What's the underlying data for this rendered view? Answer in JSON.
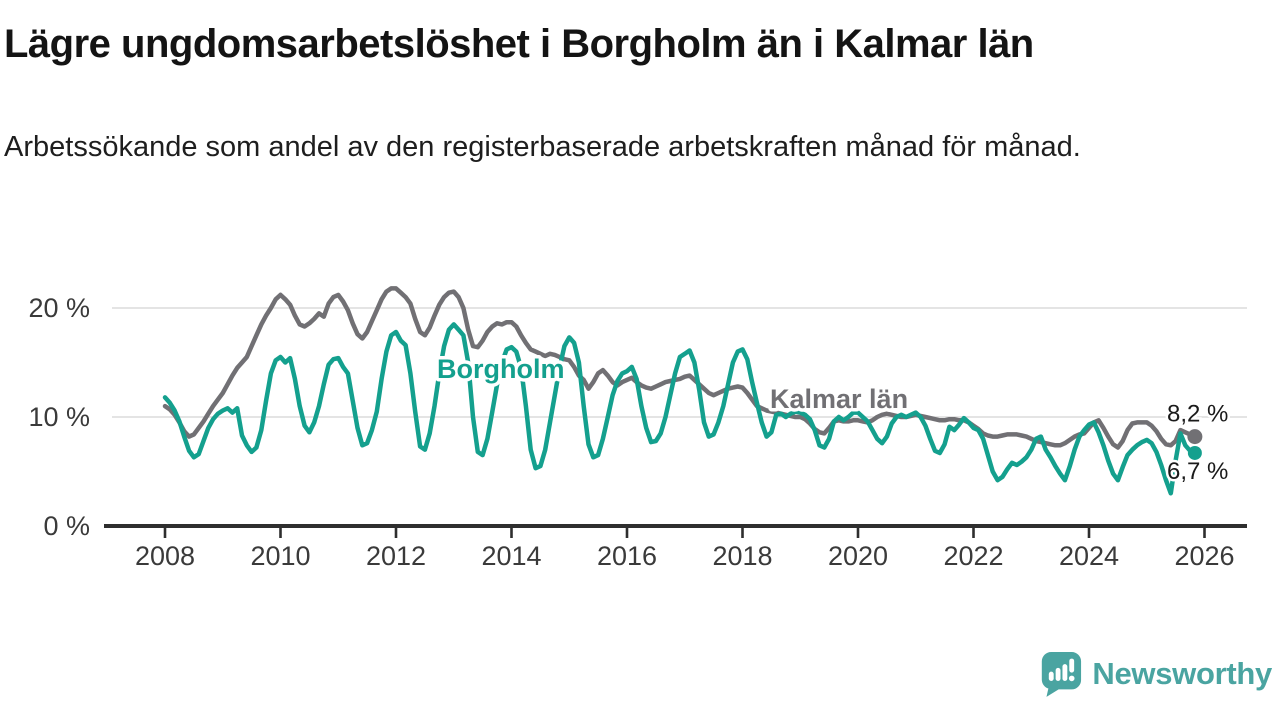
{
  "title": "Lägre ungdomsarbetslöshet i Borgholm än i Kalmar län",
  "subtitle": "Arbetssökande som andel av den registerbaserade arbetskraften månad för månad.",
  "footer": {
    "brand": "Newsworthy"
  },
  "colors": {
    "borgholm": "#14A08E",
    "kalmar": "#717074",
    "grid": "#dbdbdb",
    "axis": "#2e2e2e",
    "tick_text": "#3a3a3a",
    "value_text": "#1a1a1a",
    "logo": "#4AA4A1"
  },
  "chart_data": {
    "type": "line",
    "title": "Lägre ungdomsarbetslöshet i Borgholm än i Kalmar län",
    "xlabel": "",
    "ylabel": "Arbetssökande som andel av den registerbaserade arbetskraften",
    "x_start_year": 2008,
    "points_per_year": 12,
    "x_ticks": [
      2008,
      2010,
      2012,
      2014,
      2016,
      2018,
      2020,
      2022,
      2024,
      2026
    ],
    "y_ticks": [
      {
        "value": 0,
        "label": "0 %"
      },
      {
        "value": 10,
        "label": "10 %"
      },
      {
        "value": 20,
        "label": "20 %"
      }
    ],
    "ylim": [
      0,
      23
    ],
    "xlim": [
      2007.9,
      2026.8
    ],
    "grid": true,
    "legend_position": "inline-labels",
    "series": [
      {
        "name": "Kalmar län",
        "color": "#717074",
        "end_label": "8,2 %",
        "end_value": 8.2,
        "values": [
          11.0,
          10.7,
          10.2,
          9.5,
          8.7,
          8.2,
          8.4,
          9.0,
          9.6,
          10.3,
          11.0,
          11.6,
          12.2,
          13.0,
          13.8,
          14.5,
          15.0,
          15.5,
          16.5,
          17.5,
          18.5,
          19.3,
          20.0,
          20.8,
          21.2,
          20.8,
          20.3,
          19.3,
          18.5,
          18.3,
          18.6,
          19.0,
          19.5,
          19.2,
          20.4,
          21.0,
          21.2,
          20.6,
          19.8,
          18.6,
          17.6,
          17.2,
          17.8,
          18.8,
          19.8,
          20.8,
          21.5,
          21.8,
          21.8,
          21.4,
          21.0,
          20.4,
          19.0,
          17.8,
          17.5,
          18.2,
          19.3,
          20.3,
          21.0,
          21.4,
          21.5,
          21.0,
          20.0,
          18.0,
          16.5,
          16.4,
          17.0,
          17.8,
          18.3,
          18.6,
          18.5,
          18.7,
          18.7,
          18.3,
          17.5,
          16.8,
          16.2,
          16.0,
          15.8,
          15.6,
          15.8,
          15.7,
          15.5,
          15.3,
          15.2,
          14.6,
          13.8,
          13.4,
          12.6,
          13.2,
          14.0,
          14.3,
          13.8,
          13.2,
          12.9,
          13.2,
          13.4,
          13.6,
          13.2,
          12.9,
          12.7,
          12.6,
          12.8,
          13.0,
          13.2,
          13.3,
          13.4,
          13.5,
          13.7,
          13.8,
          13.4,
          13.0,
          12.6,
          12.2,
          12.0,
          12.2,
          12.4,
          12.6,
          12.7,
          12.8,
          12.7,
          12.2,
          11.6,
          11.0,
          10.8,
          10.6,
          10.5,
          10.4,
          10.3,
          10.2,
          10.1,
          10.0,
          10.0,
          9.8,
          9.4,
          8.9,
          8.6,
          8.5,
          9.0,
          9.6,
          9.7,
          9.6,
          9.6,
          9.7,
          9.7,
          9.6,
          9.5,
          9.7,
          10.0,
          10.2,
          10.3,
          10.2,
          10.1,
          10.0,
          10.0,
          10.1,
          10.2,
          10.1,
          10.0,
          9.9,
          9.8,
          9.7,
          9.7,
          9.8,
          9.8,
          9.7,
          9.7,
          9.5,
          9.2,
          8.9,
          8.5,
          8.3,
          8.2,
          8.2,
          8.3,
          8.4,
          8.4,
          8.4,
          8.3,
          8.2,
          8.0,
          7.8,
          7.7,
          7.6,
          7.5,
          7.4,
          7.4,
          7.6,
          7.9,
          8.2,
          8.4,
          8.5,
          9.0,
          9.5,
          9.7,
          9.0,
          8.2,
          7.5,
          7.2,
          7.8,
          8.8,
          9.4,
          9.5,
          9.5,
          9.5,
          9.2,
          8.7,
          8.0,
          7.5,
          7.4,
          7.8,
          8.8,
          8.6,
          8.4,
          8.2
        ]
      },
      {
        "name": "Borgholm",
        "color": "#14A08E",
        "end_label": "6,7 %",
        "end_value": 6.7,
        "values": [
          11.8,
          11.3,
          10.6,
          9.6,
          8.2,
          6.9,
          6.3,
          6.6,
          7.8,
          9.0,
          9.8,
          10.3,
          10.6,
          10.8,
          10.4,
          10.8,
          8.3,
          7.4,
          6.8,
          7.2,
          8.8,
          11.5,
          14.0,
          15.2,
          15.5,
          15.0,
          15.4,
          13.5,
          11.0,
          9.2,
          8.6,
          9.5,
          11.0,
          13.0,
          14.8,
          15.3,
          15.4,
          14.6,
          14.0,
          11.5,
          9.0,
          7.4,
          7.6,
          8.8,
          10.5,
          13.5,
          16.0,
          17.5,
          17.8,
          17.0,
          16.6,
          14.0,
          10.5,
          7.3,
          7.0,
          8.5,
          11.0,
          14.0,
          16.5,
          18.0,
          18.5,
          18.0,
          17.5,
          15.0,
          10.0,
          6.8,
          6.5,
          8.0,
          10.5,
          13.0,
          15.0,
          16.2,
          16.4,
          16.0,
          14.5,
          11.0,
          7.0,
          5.3,
          5.5,
          7.0,
          9.5,
          12.0,
          14.5,
          16.5,
          17.3,
          16.8,
          15.0,
          11.0,
          7.5,
          6.3,
          6.5,
          8.0,
          10.0,
          12.0,
          13.3,
          14.0,
          14.2,
          14.6,
          13.5,
          11.0,
          9.0,
          7.7,
          7.8,
          8.5,
          10.0,
          12.0,
          14.0,
          15.5,
          15.8,
          16.1,
          15.0,
          12.5,
          9.5,
          8.2,
          8.4,
          9.5,
          11.0,
          13.0,
          15.0,
          16.0,
          16.2,
          15.3,
          13.2,
          11.3,
          9.5,
          8.2,
          8.6,
          10.2,
          10.3,
          10.0,
          10.3,
          10.5,
          10.4,
          10.2,
          9.8,
          8.8,
          7.4,
          7.2,
          8.0,
          9.6,
          10.0,
          9.7,
          10.0,
          10.4,
          10.4,
          10.0,
          9.6,
          8.8,
          8.0,
          7.6,
          8.2,
          9.4,
          10.0,
          10.2,
          10.0,
          10.2,
          10.4,
          10.0,
          9.2,
          8.0,
          6.9,
          6.7,
          7.5,
          9.1,
          8.8,
          9.3,
          9.9,
          9.5,
          9.0,
          8.8,
          8.0,
          6.5,
          5.0,
          4.2,
          4.5,
          5.2,
          5.8,
          5.6,
          5.9,
          6.3,
          7.0,
          8.0,
          8.2,
          7.0,
          6.3,
          5.5,
          4.8,
          4.2,
          5.5,
          7.0,
          8.2,
          8.8,
          9.3,
          9.5,
          8.6,
          7.4,
          6.0,
          4.8,
          4.2,
          5.4,
          6.5,
          7.0,
          7.4,
          7.7,
          7.9,
          7.6,
          6.8,
          5.6,
          4.2,
          3.0,
          6.0,
          8.5,
          7.4,
          6.9,
          6.7
        ]
      }
    ]
  }
}
